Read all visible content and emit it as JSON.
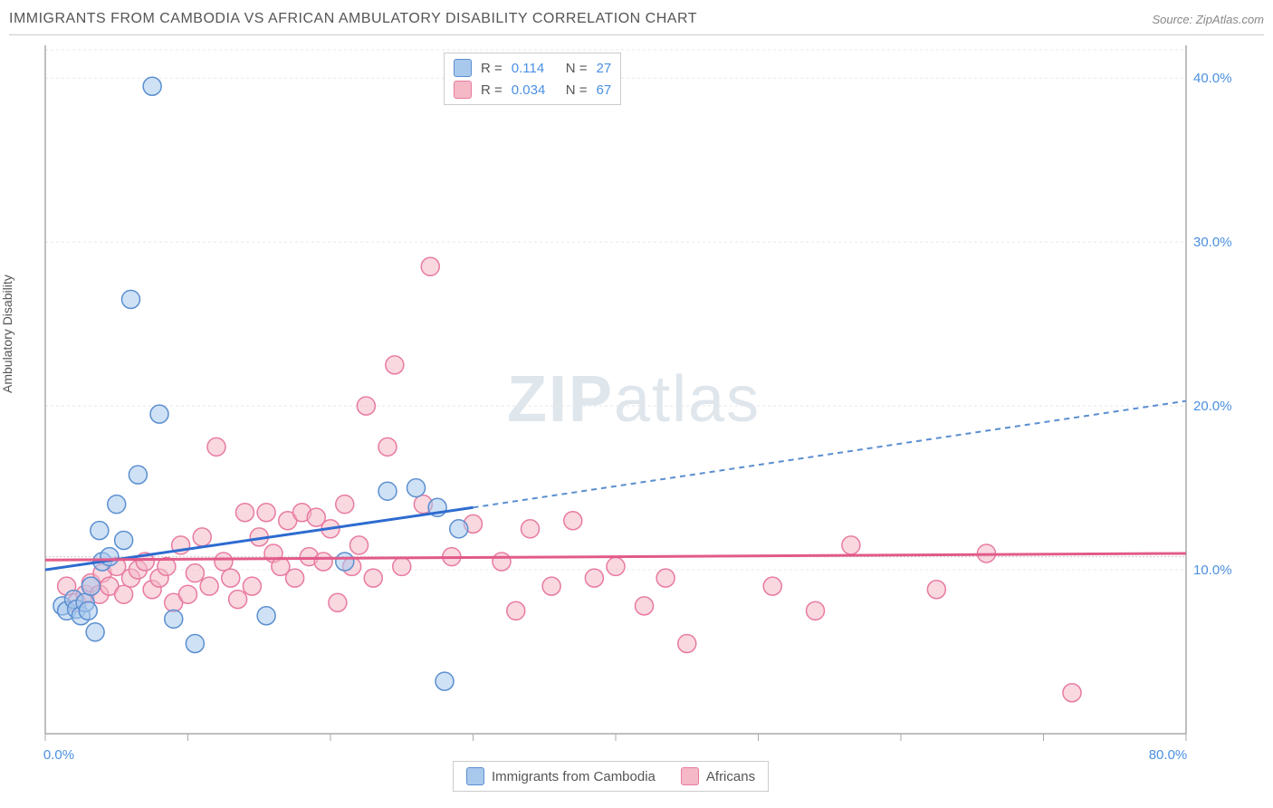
{
  "title": "IMMIGRANTS FROM CAMBODIA VS AFRICAN AMBULATORY DISABILITY CORRELATION CHART",
  "source": "Source: ZipAtlas.com",
  "ylabel": "Ambulatory Disability",
  "watermark": {
    "zip": "ZIP",
    "atlas": "atlas"
  },
  "chart": {
    "type": "scatter",
    "xlim": [
      0,
      80
    ],
    "ylim": [
      0,
      42
    ],
    "x_ticks": [
      0,
      10,
      20,
      30,
      40,
      50,
      60,
      70,
      80
    ],
    "x_tick_labels": {
      "0": "0.0%",
      "80": "80.0%"
    },
    "y_ticks": [
      10,
      20,
      30,
      40
    ],
    "y_tick_labels": [
      "10.0%",
      "20.0%",
      "30.0%",
      "40.0%"
    ],
    "grid_dash": "3,3",
    "grid_color": "#e8e8e8",
    "axis_color": "#aaaaaa",
    "background_color": "#ffffff",
    "dotted_baseline_y": 10.8,
    "marker_radius": 10,
    "series": [
      {
        "name": "Immigrants from Cambodia",
        "color_fill": "#a8c8ec",
        "color_stroke": "#5b8fd0",
        "fill_opacity": 0.55,
        "points": [
          [
            1.2,
            7.8
          ],
          [
            1.5,
            7.5
          ],
          [
            2.0,
            8.2
          ],
          [
            2.2,
            7.6
          ],
          [
            2.5,
            7.2
          ],
          [
            2.8,
            8.0
          ],
          [
            3.0,
            7.5
          ],
          [
            3.2,
            9.0
          ],
          [
            3.5,
            6.2
          ],
          [
            3.8,
            12.4
          ],
          [
            4.0,
            10.5
          ],
          [
            4.5,
            10.8
          ],
          [
            5.0,
            14.0
          ],
          [
            5.5,
            11.8
          ],
          [
            6.0,
            26.5
          ],
          [
            6.5,
            15.8
          ],
          [
            7.5,
            39.5
          ],
          [
            8.0,
            19.5
          ],
          [
            9.0,
            7.0
          ],
          [
            10.5,
            5.5
          ],
          [
            15.5,
            7.2
          ],
          [
            21.0,
            10.5
          ],
          [
            24.0,
            14.8
          ],
          [
            26.0,
            15.0
          ],
          [
            27.5,
            13.8
          ],
          [
            28.0,
            3.2
          ],
          [
            29.0,
            12.5
          ]
        ],
        "trend": {
          "x0": 0,
          "y0": 10.0,
          "x1": 30,
          "y1": 13.8,
          "dash_x2": 80,
          "dash_y2": 20.3,
          "solid_color": "#2d6bd0",
          "dash_color": "#5b8fd0"
        },
        "R": "0.114",
        "N": "27"
      },
      {
        "name": "Africans",
        "color_fill": "#f4b8c6",
        "color_stroke": "#e87ba0",
        "fill_opacity": 0.55,
        "points": [
          [
            1.5,
            9.0
          ],
          [
            2.2,
            8.0
          ],
          [
            2.8,
            8.5
          ],
          [
            3.2,
            9.2
          ],
          [
            3.8,
            8.5
          ],
          [
            4.0,
            9.8
          ],
          [
            4.5,
            9.0
          ],
          [
            5.0,
            10.2
          ],
          [
            5.5,
            8.5
          ],
          [
            6.0,
            9.5
          ],
          [
            6.5,
            10.0
          ],
          [
            7.0,
            10.5
          ],
          [
            7.5,
            8.8
          ],
          [
            8.0,
            9.5
          ],
          [
            8.5,
            10.2
          ],
          [
            9.0,
            8.0
          ],
          [
            9.5,
            11.5
          ],
          [
            10.0,
            8.5
          ],
          [
            10.5,
            9.8
          ],
          [
            11.0,
            12.0
          ],
          [
            11.5,
            9.0
          ],
          [
            12.0,
            17.5
          ],
          [
            12.5,
            10.5
          ],
          [
            13.0,
            9.5
          ],
          [
            13.5,
            8.2
          ],
          [
            14.0,
            13.5
          ],
          [
            14.5,
            9.0
          ],
          [
            15.0,
            12.0
          ],
          [
            15.5,
            13.5
          ],
          [
            16.0,
            11.0
          ],
          [
            16.5,
            10.2
          ],
          [
            17.0,
            13.0
          ],
          [
            17.5,
            9.5
          ],
          [
            18.0,
            13.5
          ],
          [
            18.5,
            10.8
          ],
          [
            19.0,
            13.2
          ],
          [
            19.5,
            10.5
          ],
          [
            20.0,
            12.5
          ],
          [
            20.5,
            8.0
          ],
          [
            21.0,
            14.0
          ],
          [
            21.5,
            10.2
          ],
          [
            22.0,
            11.5
          ],
          [
            22.5,
            20.0
          ],
          [
            23.0,
            9.5
          ],
          [
            24.0,
            17.5
          ],
          [
            24.5,
            22.5
          ],
          [
            25.0,
            10.2
          ],
          [
            26.5,
            14.0
          ],
          [
            27.0,
            28.5
          ],
          [
            28.5,
            10.8
          ],
          [
            30.0,
            12.8
          ],
          [
            32.0,
            10.5
          ],
          [
            33.0,
            7.5
          ],
          [
            34.0,
            12.5
          ],
          [
            35.5,
            9.0
          ],
          [
            37.0,
            13.0
          ],
          [
            38.5,
            9.5
          ],
          [
            40.0,
            10.2
          ],
          [
            42.0,
            7.8
          ],
          [
            43.5,
            9.5
          ],
          [
            45.0,
            5.5
          ],
          [
            51.0,
            9.0
          ],
          [
            54.0,
            7.5
          ],
          [
            56.5,
            11.5
          ],
          [
            62.5,
            8.8
          ],
          [
            66.0,
            11.0
          ],
          [
            72.0,
            2.5
          ]
        ],
        "trend": {
          "x0": 0,
          "y0": 10.6,
          "x1": 80,
          "y1": 11.0,
          "color": "#e25a8a"
        },
        "R": "0.034",
        "N": "67"
      }
    ]
  },
  "legend_stats": {
    "rows": [
      {
        "swatch": "blue",
        "R_label": "R =",
        "R": "0.114",
        "N_label": "N =",
        "N": "27"
      },
      {
        "swatch": "pink",
        "R_label": "R =",
        "R": "0.034",
        "N_label": "N =",
        "N": "67"
      }
    ]
  },
  "legend_bottom": {
    "items": [
      {
        "swatch": "blue",
        "label": "Immigrants from Cambodia"
      },
      {
        "swatch": "pink",
        "label": "Africans"
      }
    ]
  }
}
